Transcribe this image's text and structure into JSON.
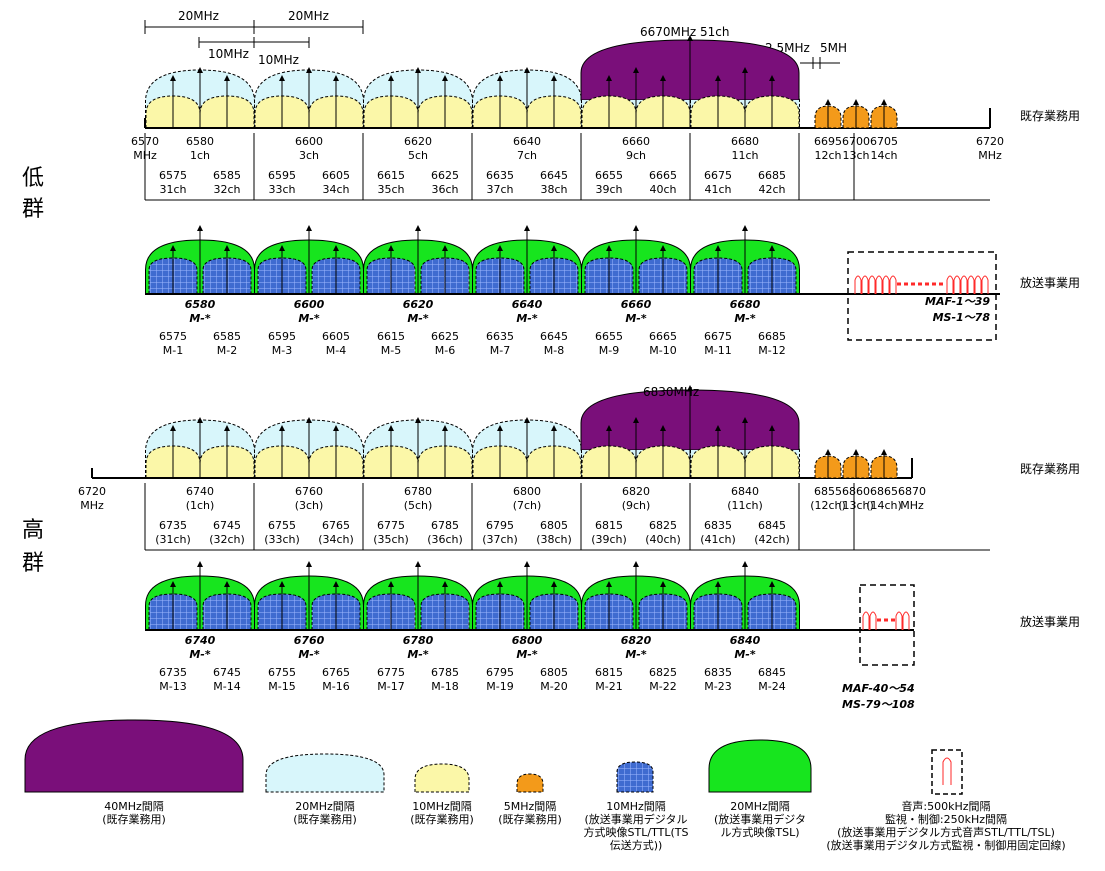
{
  "colors": {
    "purple": "#7a0f7a",
    "light_blue": "#d8f6fb",
    "light_yellow": "#fbf7a8",
    "orange": "#f39a1a",
    "green": "#17e51e",
    "digital_blue": "#3f6bd0",
    "red": "#ff2a2a"
  },
  "low_group": {
    "side_label": "低群",
    "existing": {
      "label": "既存業務用",
      "top_measures": [
        "20MHz",
        "20MHz",
        "10MHz",
        "10MHz"
      ],
      "top_note": "6670MHz 51ch",
      "small_measures": [
        "2.5MHz",
        "5MH"
      ],
      "start": [
        "6570",
        "MHz"
      ],
      "end": [
        "6720",
        "MHz"
      ],
      "main_freqs": [
        "6580",
        "6600",
        "6620",
        "6640",
        "6660",
        "6680"
      ],
      "main_chs": [
        "1ch",
        "3ch",
        "5ch",
        "7ch",
        "9ch",
        "11ch"
      ],
      "small_freqs": [
        "6695",
        "6700",
        "6705"
      ],
      "small_chs": [
        "12ch",
        "13ch",
        "14ch"
      ],
      "sub_freqs": [
        "6575",
        "6585",
        "6595",
        "6605",
        "6615",
        "6625",
        "6635",
        "6645",
        "6655",
        "6665",
        "6675",
        "6685"
      ],
      "sub_chs": [
        "31ch",
        "32ch",
        "33ch",
        "34ch",
        "35ch",
        "36ch",
        "37ch",
        "38ch",
        "39ch",
        "40ch",
        "41ch",
        "42ch"
      ]
    },
    "broadcast": {
      "label": "放送事業用",
      "main_freqs": [
        "6580",
        "6600",
        "6620",
        "6640",
        "6660",
        "6680"
      ],
      "main_ms": [
        "M-*",
        "M-*",
        "M-*",
        "M-*",
        "M-*",
        "M-*"
      ],
      "sub_freqs": [
        "6575",
        "6585",
        "6595",
        "6605",
        "6615",
        "6625",
        "6635",
        "6645",
        "6655",
        "6665",
        "6675",
        "6685"
      ],
      "sub_ms": [
        "M-1",
        "M-2",
        "M-3",
        "M-4",
        "M-5",
        "M-6",
        "M-7",
        "M-8",
        "M-9",
        "M-10",
        "M-11",
        "M-12"
      ],
      "box_lines": [
        "MAF-1～39",
        "MS-1～78"
      ]
    }
  },
  "high_group": {
    "side_label": "高群",
    "existing": {
      "label": "既存業務用",
      "top_note": "6830MHz",
      "start": [
        "6720",
        "MHz"
      ],
      "end": [
        "6870",
        "MHz"
      ],
      "main_freqs": [
        "6740",
        "6760",
        "6780",
        "6800",
        "6820",
        "6840"
      ],
      "main_chs": [
        "(1ch)",
        "(3ch)",
        "(5ch)",
        "(7ch)",
        "(9ch)",
        "(11ch)"
      ],
      "small_freqs": [
        "6855",
        "6860",
        "6865"
      ],
      "small_chs": [
        "(12ch)",
        "(13ch)",
        "(14ch)"
      ],
      "sub_freqs": [
        "6735",
        "6745",
        "6755",
        "6765",
        "6775",
        "6785",
        "6795",
        "6805",
        "6815",
        "6825",
        "6835",
        "6845"
      ],
      "sub_chs": [
        "(31ch)",
        "(32ch)",
        "(33ch)",
        "(34ch)",
        "(35ch)",
        "(36ch)",
        "(37ch)",
        "(38ch)",
        "(39ch)",
        "(40ch)",
        "(41ch)",
        "(42ch)"
      ]
    },
    "broadcast": {
      "label": "放送事業用",
      "main_freqs": [
        "6740",
        "6760",
        "6780",
        "6800",
        "6820",
        "6840"
      ],
      "main_ms": [
        "M-*",
        "M-*",
        "M-*",
        "M-*",
        "M-*",
        "M-*"
      ],
      "sub_freqs": [
        "6735",
        "6745",
        "6755",
        "6765",
        "6775",
        "6785",
        "6795",
        "6805",
        "6815",
        "6825",
        "6835",
        "6845"
      ],
      "sub_ms": [
        "M-13",
        "M-14",
        "M-15",
        "M-16",
        "M-17",
        "M-18",
        "M-19",
        "M-20",
        "M-21",
        "M-22",
        "M-23",
        "M-24"
      ],
      "box_lines": [
        "MAF-40～54",
        "MS-79～108"
      ]
    }
  },
  "legend": [
    {
      "key": "purple",
      "lines": [
        "40MHz間隔",
        "(既存業務用)"
      ]
    },
    {
      "key": "light_blue",
      "lines": [
        "20MHz間隔",
        "(既存業務用)"
      ]
    },
    {
      "key": "light_yellow",
      "lines": [
        "10MHz間隔",
        "(既存業務用)"
      ]
    },
    {
      "key": "orange",
      "lines": [
        "5MHz間隔",
        "(既存業務用)"
      ]
    },
    {
      "key": "digital_blue",
      "lines": [
        "10MHz間隔",
        "(放送事業用デジタル",
        "方式映像STL/TTL(TS",
        "伝送方式))"
      ]
    },
    {
      "key": "green",
      "lines": [
        "20MHz間隔",
        "(放送事業用デジタ",
        "ル方式映像TSL)"
      ]
    },
    {
      "key": "red",
      "lines": [
        "音声:500kHz間隔",
        "監視・制御:250kHz間隔",
        "(放送事業用デジタル方式音声STL/TTL/TSL)",
        "(放送事業用デジタル方式監視・制御用固定回線)"
      ]
    }
  ]
}
